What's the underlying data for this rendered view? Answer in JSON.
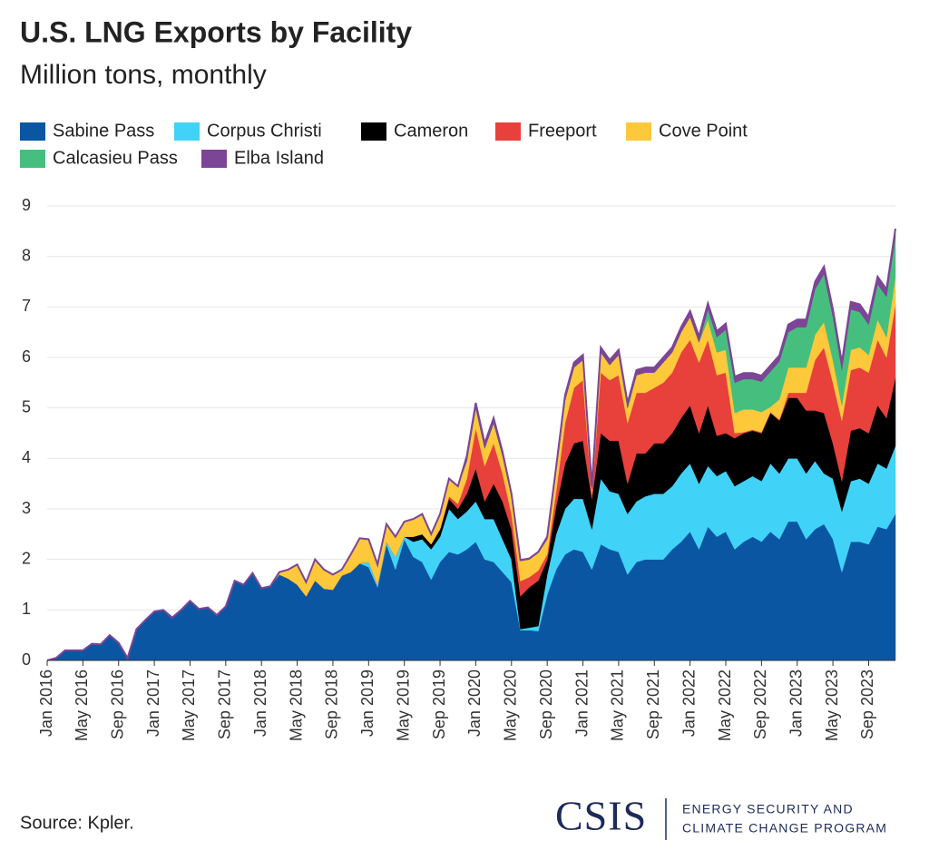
{
  "chart_data": {
    "type": "stacked_area",
    "title": "U.S. LNG Exports by Facility",
    "subtitle": "Million tons, monthly",
    "source": "Source: Kpler.",
    "logo": "CSIS",
    "program": [
      "ENERGY SECURITY AND",
      "CLIMATE CHANGE PROGRAM"
    ],
    "categories": [
      "Jan 2016",
      null,
      null,
      null,
      "May 2016",
      null,
      null,
      null,
      "Sep 2016",
      null,
      null,
      null,
      "Jan 2017",
      null,
      null,
      null,
      "May 2017",
      null,
      null,
      null,
      "Sep 2017",
      null,
      null,
      null,
      "Jan 2018",
      null,
      null,
      null,
      "May 2018",
      null,
      null,
      null,
      "Sep 2018",
      null,
      null,
      null,
      "Jan 2019",
      null,
      null,
      null,
      "May 2019",
      null,
      null,
      null,
      "Sep 2019",
      null,
      null,
      null,
      "Jan 2020",
      null,
      null,
      null,
      "May 2020",
      null,
      null,
      null,
      "Sep 2020",
      null,
      null,
      null,
      "Jan 2021",
      null,
      null,
      null,
      "May 2021",
      null,
      null,
      null,
      "Sep 2021",
      null,
      null,
      null,
      "Jan 2022",
      null,
      null,
      null,
      "May 2022",
      null,
      null,
      null,
      "Sep 2022",
      null,
      null,
      null,
      "Jan 2023",
      null,
      null,
      null,
      "May 2023",
      null,
      null,
      null,
      "Sep 2023",
      null,
      null,
      null
    ],
    "ylim": [
      0,
      9
    ],
    "yticks": [
      0,
      1,
      2,
      3,
      4,
      5,
      6,
      7,
      8,
      9
    ],
    "grid": true,
    "legend": "top",
    "series": [
      {
        "name": "Sabine Pass",
        "color": "#0b56a3",
        "values": [
          0,
          0.05,
          0.2,
          0.2,
          0.2,
          0.33,
          0.32,
          0.5,
          0.35,
          0.05,
          0.62,
          0.8,
          0.97,
          1.0,
          0.85,
          1.0,
          1.18,
          1.02,
          1.05,
          0.9,
          1.07,
          1.58,
          1.5,
          1.73,
          1.43,
          1.47,
          1.7,
          1.62,
          1.5,
          1.27,
          1.58,
          1.42,
          1.4,
          1.68,
          1.75,
          1.92,
          1.85,
          1.45,
          2.3,
          1.8,
          2.4,
          2.05,
          1.95,
          1.6,
          1.95,
          2.15,
          2.1,
          2.2,
          2.35,
          2.0,
          1.95,
          1.75,
          1.55,
          0.6,
          0.6,
          0.58,
          1.3,
          1.8,
          2.1,
          2.2,
          2.15,
          1.8,
          2.3,
          2.2,
          2.15,
          1.7,
          1.95,
          2.0,
          2.0,
          2.0,
          2.2,
          2.35,
          2.55,
          2.2,
          2.65,
          2.45,
          2.55,
          2.2,
          2.35,
          2.45,
          2.35,
          2.55,
          2.4,
          2.75,
          2.75,
          2.4,
          2.6,
          2.7,
          2.4,
          1.75,
          2.35,
          2.35,
          2.3,
          2.65,
          2.6,
          2.9
        ]
      },
      {
        "name": "Corpus Christi",
        "color": "#40d3f7",
        "values": [
          0,
          0,
          0,
          0,
          0,
          0,
          0,
          0,
          0,
          0,
          0,
          0,
          0,
          0,
          0,
          0,
          0,
          0,
          0,
          0,
          0,
          0,
          0,
          0,
          0,
          0,
          0,
          0,
          0,
          0,
          0,
          0,
          0,
          0,
          0,
          0,
          0.1,
          0.05,
          0.05,
          0.25,
          0.05,
          0.3,
          0.45,
          0.6,
          0.5,
          0.85,
          0.7,
          0.75,
          0.8,
          0.8,
          0.85,
          0.65,
          0.45,
          0.02,
          0.05,
          0.1,
          0.4,
          0.7,
          0.9,
          1.0,
          1.05,
          0.8,
          1.3,
          1.15,
          1.15,
          1.2,
          1.2,
          1.25,
          1.3,
          1.3,
          1.25,
          1.35,
          1.35,
          1.3,
          1.2,
          1.2,
          1.2,
          1.25,
          1.2,
          1.2,
          1.2,
          1.35,
          1.3,
          1.25,
          1.25,
          1.3,
          1.35,
          1.0,
          1.2,
          1.2,
          1.2,
          1.25,
          1.2,
          1.25,
          1.2,
          1.35
        ]
      },
      {
        "name": "Cameron",
        "color": "#000000",
        "values": [
          0,
          0,
          0,
          0,
          0,
          0,
          0,
          0,
          0,
          0,
          0,
          0,
          0,
          0,
          0,
          0,
          0,
          0,
          0,
          0,
          0,
          0,
          0,
          0,
          0,
          0,
          0,
          0,
          0,
          0,
          0,
          0,
          0,
          0,
          0,
          0,
          0,
          0,
          0,
          0,
          0,
          0.1,
          0.1,
          0.1,
          0.15,
          0.2,
          0.2,
          0.35,
          0.65,
          0.35,
          0.7,
          0.75,
          0.6,
          0.65,
          0.8,
          0.9,
          0.3,
          0.55,
          0.9,
          1.1,
          1.15,
          0.6,
          0.9,
          1.0,
          1.05,
          0.6,
          0.95,
          0.85,
          1.0,
          1.0,
          1.05,
          1.1,
          1.15,
          1.0,
          1.2,
          0.8,
          0.75,
          0.95,
          0.95,
          0.9,
          0.95,
          1.0,
          1.05,
          1.2,
          1.2,
          1.25,
          1.0,
          1.2,
          0.7,
          0.6,
          1.0,
          1.0,
          1.0,
          1.15,
          1.0,
          1.35
        ]
      },
      {
        "name": "Freeport",
        "color": "#e8403b",
        "values": [
          0,
          0,
          0,
          0,
          0,
          0,
          0,
          0,
          0,
          0,
          0,
          0,
          0,
          0,
          0,
          0,
          0,
          0,
          0,
          0,
          0,
          0,
          0,
          0,
          0,
          0,
          0,
          0,
          0,
          0,
          0,
          0,
          0,
          0,
          0,
          0,
          0,
          0,
          0,
          0,
          0,
          0,
          0,
          0,
          0,
          0.05,
          0.1,
          0.3,
          0.8,
          0.7,
          0.8,
          0.55,
          0.3,
          0.3,
          0.2,
          0.2,
          0.1,
          0.3,
          0.8,
          1.1,
          1.2,
          0.1,
          1.2,
          1.2,
          1.3,
          1.2,
          1.2,
          1.2,
          1.1,
          1.2,
          1.2,
          1.3,
          1.3,
          1.4,
          1.3,
          1.2,
          1.2,
          0.1,
          0.02,
          0.02,
          0.02,
          0.02,
          0.02,
          0.1,
          0.1,
          0.35,
          1.0,
          1.3,
          1.2,
          1.2,
          1.2,
          1.2,
          1.2,
          1.3,
          1.2,
          1.45
        ]
      },
      {
        "name": "Cove Point",
        "color": "#fdc83a",
        "values": [
          0,
          0,
          0,
          0,
          0,
          0,
          0,
          0,
          0,
          0,
          0,
          0,
          0,
          0,
          0,
          0,
          0,
          0,
          0,
          0,
          0,
          0,
          0,
          0,
          0,
          0,
          0.05,
          0.18,
          0.4,
          0.28,
          0.42,
          0.38,
          0.3,
          0.12,
          0.35,
          0.5,
          0.45,
          0.4,
          0.35,
          0.4,
          0.3,
          0.35,
          0.4,
          0.2,
          0.3,
          0.35,
          0.35,
          0.35,
          0.4,
          0.35,
          0.4,
          0.35,
          0.35,
          0.4,
          0.35,
          0.35,
          0.3,
          0.4,
          0.45,
          0.4,
          0.4,
          0.1,
          0.4,
          0.3,
          0.4,
          0.3,
          0.35,
          0.4,
          0.3,
          0.4,
          0.4,
          0.4,
          0.45,
          0.4,
          0.4,
          0.45,
          0.45,
          0.4,
          0.45,
          0.4,
          0.4,
          0.1,
          0.4,
          0.5,
          0.5,
          0.5,
          0.5,
          0.5,
          0.45,
          0.3,
          0.4,
          0.4,
          0.35,
          0.4,
          0.4,
          0.55
        ]
      },
      {
        "name": "Calcasieu Pass",
        "color": "#46bf7e",
        "values": [
          0,
          0,
          0,
          0,
          0,
          0,
          0,
          0,
          0,
          0,
          0,
          0,
          0,
          0,
          0,
          0,
          0,
          0,
          0,
          0,
          0,
          0,
          0,
          0,
          0,
          0,
          0,
          0,
          0,
          0,
          0,
          0,
          0,
          0,
          0,
          0,
          0,
          0,
          0,
          0,
          0,
          0,
          0,
          0,
          0,
          0,
          0,
          0,
          0,
          0,
          0,
          0,
          0,
          0,
          0,
          0,
          0,
          0,
          0,
          0,
          0,
          0,
          0,
          0,
          0,
          0,
          0,
          0,
          0,
          0,
          0,
          0,
          0,
          0,
          0.2,
          0.3,
          0.4,
          0.6,
          0.6,
          0.6,
          0.6,
          0.7,
          0.75,
          0.7,
          0.8,
          0.8,
          0.9,
          0.95,
          0.85,
          0.7,
          0.8,
          0.7,
          0.6,
          0.7,
          0.8,
          0.8
        ]
      },
      {
        "name": "Elba Island",
        "color": "#7c4596",
        "values": [
          0,
          0,
          0,
          0,
          0,
          0,
          0,
          0,
          0,
          0,
          0,
          0,
          0,
          0,
          0,
          0,
          0,
          0,
          0,
          0,
          0,
          0,
          0,
          0,
          0,
          0,
          0,
          0,
          0,
          0,
          0,
          0,
          0,
          0,
          0,
          0,
          0,
          0,
          0,
          0,
          0,
          0,
          0,
          0,
          0,
          0,
          0,
          0.1,
          0.1,
          0.1,
          0.1,
          0.08,
          0.05,
          0.02,
          0.02,
          0.02,
          0.05,
          0.08,
          0.1,
          0.1,
          0.1,
          0.05,
          0.1,
          0.1,
          0.1,
          0.1,
          0.1,
          0.1,
          0.1,
          0.1,
          0.1,
          0.1,
          0.12,
          0.12,
          0.12,
          0.12,
          0.12,
          0.12,
          0.12,
          0.12,
          0.12,
          0.12,
          0.12,
          0.15,
          0.15,
          0.15,
          0.15,
          0.15,
          0.15,
          0.15,
          0.15,
          0.15,
          0.15,
          0.15,
          0.15,
          0.15
        ]
      }
    ]
  }
}
